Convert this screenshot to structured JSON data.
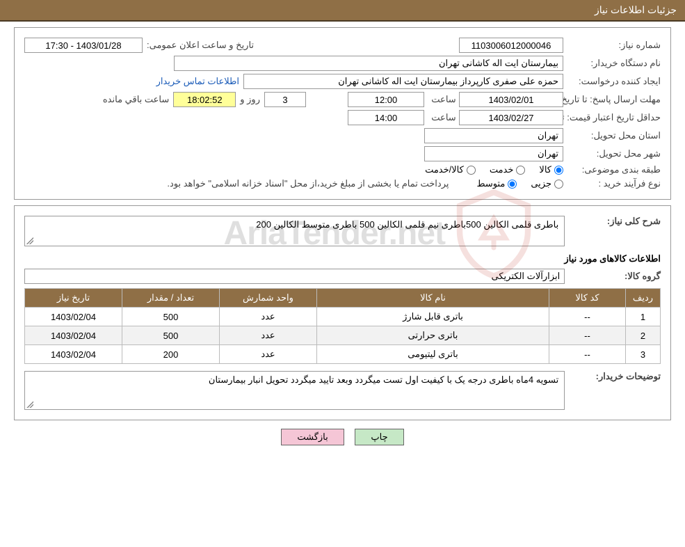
{
  "header": {
    "title": "جزئیات اطلاعات نیاز"
  },
  "info": {
    "need_no_label": "شماره نیاز:",
    "need_no": "1103006012000046",
    "announce_label": "تاریخ و ساعت اعلان عمومی:",
    "announce_value": "1403/01/28 - 17:30",
    "buyer_device_label": "نام دستگاه خریدار:",
    "buyer_device": "بیمارستان ایت اله کاشانی تهران",
    "requester_label": "ایجاد کننده درخواست:",
    "requester": "حمزه علی صفری کارپرداز بیمارستان ایت اله کاشانی تهران",
    "contact_link": "اطلاعات تماس خریدار",
    "deadline_label": "مهلت ارسال پاسخ: تا تاریخ:",
    "deadline_date": "1403/02/01",
    "time_label": "ساعت",
    "deadline_time": "12:00",
    "days_remaining": "3",
    "days_and": "روز و",
    "time_remaining": "18:02:52",
    "remaining_suffix": "ساعت باقي مانده",
    "price_validity_label": "حداقل تاریخ اعتبار قیمت: تا تاریخ:",
    "price_validity_date": "1403/02/27",
    "price_validity_time": "14:00",
    "delivery_province_label": "استان محل تحویل:",
    "delivery_province": "تهران",
    "delivery_city_label": "شهر محل تحویل:",
    "delivery_city": "تهران",
    "category_label": "طبقه بندی موضوعی:",
    "cat_goods": "کالا",
    "cat_service": "خدمت",
    "cat_goods_service": "کالا/خدمت",
    "purchase_type_label": "نوع فرآیند خرید :",
    "pt_partial": "جزیی",
    "pt_medium": "متوسط",
    "purchase_note": "پرداخت تمام یا بخشی از مبلغ خرید،از محل \"اسناد خزانه اسلامی\" خواهد بود."
  },
  "details": {
    "desc_label": "شرح کلی نیاز:",
    "desc_text": "باطری قلمی الکالین  500باطری نیم قلمی الکالین 500 باطری متوسط الکالین  200",
    "goods_section_title": "اطلاعات کالاهای مورد نیاز",
    "group_label": "گروه کالا:",
    "group_value": "ابزارآلات الکتریکی",
    "table": {
      "headers": {
        "row": "ردیف",
        "code": "کد کالا",
        "name": "نام کالا",
        "unit": "واحد شمارش",
        "qty": "تعداد / مقدار",
        "date": "تاریخ نیاز"
      },
      "rows": [
        {
          "n": "1",
          "code": "--",
          "name": "باتری قابل شارژ",
          "unit": "عدد",
          "qty": "500",
          "date": "1403/02/04"
        },
        {
          "n": "2",
          "code": "--",
          "name": "باتری حرارتی",
          "unit": "عدد",
          "qty": "500",
          "date": "1403/02/04"
        },
        {
          "n": "3",
          "code": "--",
          "name": "باتری لیتیومی",
          "unit": "عدد",
          "qty": "200",
          "date": "1403/02/04"
        }
      ]
    },
    "buyer_note_label": "توضیحات خریدار:",
    "buyer_note_text": "تسویه 4ماه باطری درجه یک با کیفیت اول تست میگردد وبعد تایید میگردد تحویل انبار بیمارستان"
  },
  "buttons": {
    "print": "چاپ",
    "back": "بازگشت"
  },
  "watermark": {
    "text": "AriaTender.net"
  },
  "colors": {
    "header": "#8f6f46",
    "yellow": "#ffff99",
    "link": "#1a5bb8"
  }
}
